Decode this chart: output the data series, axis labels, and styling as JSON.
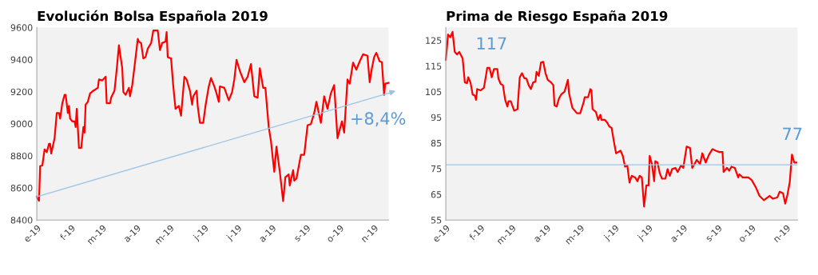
{
  "chart_data": [
    {
      "type": "line",
      "title": "Evolución Bolsa Española 2019",
      "xlim": [
        "2019-01-01",
        "2019-11-14"
      ],
      "ylim": [
        8400,
        9600
      ],
      "yticks": [
        8400,
        8600,
        8800,
        9000,
        9200,
        9400,
        9600
      ],
      "xticks": [
        {
          "value": "2019-01-01",
          "label": "e-19"
        },
        {
          "value": "2019-02-01",
          "label": "f-19"
        },
        {
          "value": "2019-03-01",
          "label": "m-19"
        },
        {
          "value": "2019-04-01",
          "label": "a-19"
        },
        {
          "value": "2019-05-01",
          "label": "m-19"
        },
        {
          "value": "2019-06-01",
          "label": "j-19"
        },
        {
          "value": "2019-07-01",
          "label": "j-19"
        },
        {
          "value": "2019-08-01",
          "label": "a-19"
        },
        {
          "value": "2019-09-01",
          "label": "s-19"
        },
        {
          "value": "2019-10-01",
          "label": "o-19"
        },
        {
          "value": "2019-11-01",
          "label": "n-19"
        }
      ],
      "grid": false,
      "legend": false,
      "marker": "none",
      "line_style": "solid",
      "annotations": [
        "+8,4%"
      ],
      "series": [
        {
          "color": "#ff0000",
          "x": [
            "2019-01-01",
            "2019-01-03",
            "2019-01-04",
            "2019-01-06",
            "2019-01-08",
            "2019-01-10",
            "2019-01-12",
            "2019-01-13",
            "2019-01-14",
            "2019-01-17",
            "2019-01-19",
            "2019-01-21",
            "2019-01-22",
            "2019-01-24",
            "2019-01-26",
            "2019-01-27",
            "2019-01-29",
            "2019-01-30",
            "2019-01-31",
            "2019-02-02",
            "2019-02-04",
            "2019-02-05",
            "2019-02-06",
            "2019-02-08",
            "2019-02-10",
            "2019-02-12",
            "2019-02-13",
            "2019-02-14",
            "2019-02-16",
            "2019-02-18",
            "2019-02-21",
            "2019-02-25",
            "2019-02-26",
            "2019-03-01",
            "2019-03-04",
            "2019-03-05",
            "2019-03-08",
            "2019-03-09",
            "2019-03-12",
            "2019-03-14",
            "2019-03-16",
            "2019-03-19",
            "2019-03-20",
            "2019-03-22",
            "2019-03-25",
            "2019-03-26",
            "2019-03-28",
            "2019-03-30",
            "2019-04-02",
            "2019-04-03",
            "2019-04-05",
            "2019-04-07",
            "2019-04-09",
            "2019-04-11",
            "2019-04-14",
            "2019-04-16",
            "2019-04-20",
            "2019-04-22",
            "2019-04-24",
            "2019-04-27",
            "2019-04-28",
            "2019-04-29",
            "2019-05-02",
            "2019-05-04",
            "2019-05-06",
            "2019-05-09",
            "2019-05-11",
            "2019-05-14",
            "2019-05-16",
            "2019-05-19",
            "2019-05-21",
            "2019-05-22",
            "2019-05-25",
            "2019-05-26",
            "2019-05-28",
            "2019-05-31",
            "2019-06-02",
            "2019-06-05",
            "2019-06-07",
            "2019-06-10",
            "2019-06-12",
            "2019-06-14",
            "2019-06-15",
            "2019-06-19",
            "2019-06-23",
            "2019-06-26",
            "2019-06-28",
            "2019-06-30",
            "2019-07-03",
            "2019-07-07",
            "2019-07-10",
            "2019-07-13",
            "2019-07-16",
            "2019-07-19",
            "2019-07-21",
            "2019-07-24",
            "2019-07-26",
            "2019-07-29",
            "2019-07-31",
            "2019-08-03",
            "2019-08-05",
            "2019-08-07",
            "2019-08-08",
            "2019-08-11",
            "2019-08-13",
            "2019-08-16",
            "2019-08-17",
            "2019-08-20",
            "2019-08-21",
            "2019-08-23",
            "2019-08-27",
            "2019-08-30",
            "2019-09-02",
            "2019-09-05",
            "2019-09-08",
            "2019-09-10",
            "2019-09-14",
            "2019-09-17",
            "2019-09-20",
            "2019-09-23",
            "2019-09-26",
            "2019-09-29",
            "2019-10-03",
            "2019-10-05",
            "2019-10-08",
            "2019-10-10",
            "2019-10-13",
            "2019-10-16",
            "2019-10-19",
            "2019-10-22",
            "2019-10-26",
            "2019-10-28",
            "2019-10-30",
            "2019-11-01",
            "2019-11-03",
            "2019-11-06",
            "2019-11-08",
            "2019-11-10",
            "2019-11-11",
            "2019-11-14"
          ],
          "values": [
            8545,
            8520,
            8736,
            8740,
            8840,
            8823,
            8875,
            8875,
            8814,
            8910,
            9067,
            9067,
            9032,
            9128,
            9180,
            9180,
            9067,
            9111,
            9032,
            9015,
            9015,
            8980,
            9093,
            8849,
            8849,
            8980,
            8945,
            9119,
            9137,
            9189,
            9206,
            9224,
            9276,
            9270,
            9293,
            9128,
            9128,
            9163,
            9206,
            9337,
            9489,
            9346,
            9198,
            9180,
            9224,
            9171,
            9241,
            9354,
            9529,
            9512,
            9503,
            9407,
            9416,
            9468,
            9503,
            9581,
            9581,
            9459,
            9503,
            9512,
            9572,
            9415,
            9407,
            9233,
            9093,
            9111,
            9050,
            9293,
            9276,
            9206,
            9119,
            9171,
            9206,
            9111,
            9006,
            9006,
            9111,
            9233,
            9285,
            9233,
            9189,
            9137,
            9233,
            9224,
            9146,
            9198,
            9276,
            9398,
            9329,
            9259,
            9293,
            9372,
            9171,
            9163,
            9346,
            9224,
            9224,
            8980,
            8893,
            8701,
            8858,
            8753,
            8701,
            8518,
            8667,
            8684,
            8615,
            8711,
            8646,
            8658,
            8806,
            8806,
            8990,
            8998,
            9067,
            9137,
            9006,
            9171,
            9093,
            9189,
            9241,
            8910,
            9015,
            8945,
            9276,
            9250,
            9381,
            9337,
            9389,
            9433,
            9424,
            9259,
            9346,
            9415,
            9442,
            9389,
            9384,
            9180,
            9250,
            9255
          ]
        }
      ]
    },
    {
      "type": "line",
      "title": "Prima de Riesgo España 2019",
      "xlim": [
        "2019-01-01",
        "2019-11-11"
      ],
      "ylim": [
        55,
        130
      ],
      "yticks": [
        55,
        65,
        75,
        85,
        95,
        105,
        115,
        125
      ],
      "xticks": [
        {
          "value": "2019-01-01",
          "label": "e-19"
        },
        {
          "value": "2019-02-01",
          "label": "f-19"
        },
        {
          "value": "2019-03-01",
          "label": "m-19"
        },
        {
          "value": "2019-04-01",
          "label": "a-19"
        },
        {
          "value": "2019-05-01",
          "label": "m-19"
        },
        {
          "value": "2019-06-01",
          "label": "j-19"
        },
        {
          "value": "2019-07-01",
          "label": "j-19"
        },
        {
          "value": "2019-08-01",
          "label": "a-19"
        },
        {
          "value": "2019-09-01",
          "label": "s-19"
        },
        {
          "value": "2019-10-01",
          "label": "o-19"
        },
        {
          "value": "2019-11-01",
          "label": "n-19"
        }
      ],
      "grid": false,
      "legend": false,
      "marker": "none",
      "line_style": "solid",
      "annotations": [
        "117",
        "77"
      ],
      "ref_lines": [
        {
          "axis": "y",
          "value": 76.5,
          "color": "#9dc3e6"
        }
      ],
      "series": [
        {
          "color": "#ff0000",
          "x": [
            "2019-01-01",
            "2019-01-03",
            "2019-01-05",
            "2019-01-07",
            "2019-01-09",
            "2019-01-11",
            "2019-01-13",
            "2019-01-16",
            "2019-01-18",
            "2019-01-20",
            "2019-01-21",
            "2019-01-23",
            "2019-01-25",
            "2019-01-27",
            "2019-01-28",
            "2019-01-29",
            "2019-02-01",
            "2019-02-04",
            "2019-02-05",
            "2019-02-07",
            "2019-02-09",
            "2019-02-11",
            "2019-02-13",
            "2019-02-16",
            "2019-02-17",
            "2019-02-19",
            "2019-02-21",
            "2019-02-23",
            "2019-02-25",
            "2019-02-26",
            "2019-02-28",
            "2019-03-03",
            "2019-03-06",
            "2019-03-08",
            "2019-03-10",
            "2019-03-12",
            "2019-03-14",
            "2019-03-16",
            "2019-03-18",
            "2019-03-20",
            "2019-03-22",
            "2019-03-23",
            "2019-03-25",
            "2019-03-27",
            "2019-03-29",
            "2019-03-31",
            "2019-04-02",
            "2019-04-05",
            "2019-04-07",
            "2019-04-08",
            "2019-04-10",
            "2019-04-12",
            "2019-04-14",
            "2019-04-17",
            "2019-04-20",
            "2019-04-21",
            "2019-04-24",
            "2019-04-28",
            "2019-05-01",
            "2019-05-04",
            "2019-05-05",
            "2019-05-08",
            "2019-05-10",
            "2019-05-11",
            "2019-05-12",
            "2019-05-15",
            "2019-05-17",
            "2019-05-19",
            "2019-05-20",
            "2019-05-23",
            "2019-05-25",
            "2019-05-27",
            "2019-05-29",
            "2019-05-31",
            "2019-06-02",
            "2019-06-06",
            "2019-06-08",
            "2019-06-10",
            "2019-06-12",
            "2019-06-14",
            "2019-06-16",
            "2019-06-19",
            "2019-06-21",
            "2019-06-23",
            "2019-06-25",
            "2019-06-27",
            "2019-06-29",
            "2019-07-01",
            "2019-07-02",
            "2019-07-04",
            "2019-07-06",
            "2019-07-07",
            "2019-07-09",
            "2019-07-11",
            "2019-07-13",
            "2019-07-16",
            "2019-07-18",
            "2019-07-20",
            "2019-07-22",
            "2019-07-25",
            "2019-07-27",
            "2019-07-30",
            "2019-08-01",
            "2019-08-04",
            "2019-08-07",
            "2019-08-09",
            "2019-08-11",
            "2019-08-13",
            "2019-08-16",
            "2019-08-18",
            "2019-08-21",
            "2019-08-24",
            "2019-08-27",
            "2019-08-30",
            "2019-09-02",
            "2019-09-05",
            "2019-09-06",
            "2019-09-09",
            "2019-09-11",
            "2019-09-13",
            "2019-09-16",
            "2019-09-19",
            "2019-09-20",
            "2019-09-23",
            "2019-09-28",
            "2019-10-01",
            "2019-10-05",
            "2019-10-08",
            "2019-10-12",
            "2019-10-17",
            "2019-10-20",
            "2019-10-24",
            "2019-10-26",
            "2019-10-29",
            "2019-10-31",
            "2019-11-02",
            "2019-11-04",
            "2019-11-06",
            "2019-11-08",
            "2019-11-10"
          ],
          "values": [
            117.4,
            127.3,
            126.2,
            128.3,
            120.5,
            119.5,
            120.5,
            118.0,
            108.6,
            108.3,
            110.6,
            108.6,
            103.9,
            103.4,
            101.8,
            106.0,
            105.5,
            106.5,
            109.0,
            114.3,
            114.3,
            110.6,
            113.8,
            113.8,
            110.1,
            108.0,
            107.5,
            101.8,
            99.2,
            101.3,
            101.3,
            97.6,
            98.2,
            110.6,
            112.2,
            110.3,
            110.1,
            107.5,
            106.0,
            108.6,
            108.9,
            112.7,
            111.2,
            116.4,
            116.6,
            112.2,
            109.6,
            108.6,
            107.5,
            99.7,
            99.2,
            102.3,
            103.9,
            105.0,
            109.6,
            104.4,
            98.7,
            96.6,
            96.6,
            100.8,
            102.8,
            102.8,
            106.0,
            105.5,
            98.2,
            97.1,
            94.0,
            96.0,
            94.0,
            94.0,
            93.0,
            91.4,
            90.9,
            85.7,
            81.0,
            82.0,
            80.0,
            75.8,
            76.3,
            69.6,
            72.2,
            71.6,
            70.1,
            72.2,
            71.6,
            60.2,
            68.5,
            68.5,
            80.0,
            76.8,
            70.1,
            77.9,
            77.4,
            73.2,
            71.1,
            71.1,
            74.8,
            72.2,
            74.8,
            75.3,
            73.7,
            76.3,
            75.3,
            83.6,
            83.1,
            75.3,
            76.8,
            78.4,
            76.8,
            81.0,
            77.4,
            80.5,
            82.6,
            82.0,
            81.5,
            81.5,
            73.7,
            75.3,
            74.2,
            75.8,
            75.3,
            71.6,
            72.8,
            71.6,
            71.6,
            70.6,
            67.5,
            64.4,
            62.7,
            64.4,
            63.3,
            63.8,
            66.0,
            65.4,
            61.4,
            64.9,
            69.6,
            80.5,
            77.4,
            77.4
          ]
        }
      ]
    }
  ]
}
